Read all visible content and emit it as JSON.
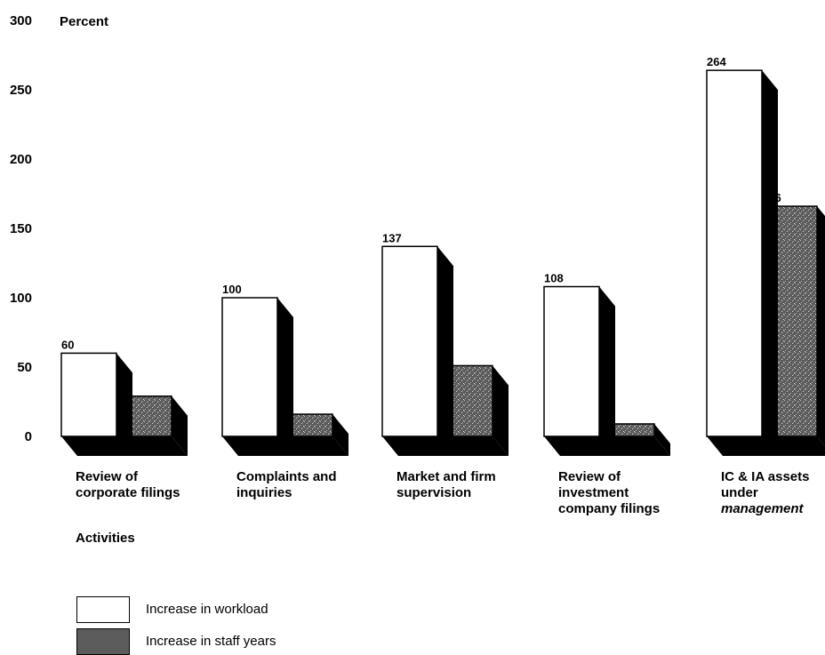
{
  "chart_data": {
    "type": "bar",
    "ylabel": "Percent",
    "xlabel": "Activities",
    "ylim": [
      0,
      300
    ],
    "yticks": [
      "0",
      "50",
      "100",
      "150",
      "200",
      "250",
      "300"
    ],
    "categories": [
      {
        "lines": [
          "Review of",
          "corporate filings"
        ],
        "italic_lines": []
      },
      {
        "lines": [
          "Complaints and",
          "inquiries"
        ],
        "italic_lines": []
      },
      {
        "lines": [
          "Market and firm",
          "supervision"
        ],
        "italic_lines": []
      },
      {
        "lines": [
          "Review of",
          "investment",
          "company filings"
        ],
        "italic_lines": []
      },
      {
        "lines": [
          "IC & IA assets",
          "under",
          "management"
        ],
        "italic_lines": [
          2
        ]
      }
    ],
    "series": [
      {
        "name": "Increase in workload",
        "values": [
          60,
          100,
          137,
          108,
          264
        ],
        "fill": "#ffffff"
      },
      {
        "name": "Increase in staff years",
        "values": [
          29,
          16,
          51,
          9,
          166
        ],
        "fill": "#5a5a5a"
      }
    ],
    "legend_position": "bottom-left",
    "grid": false
  }
}
